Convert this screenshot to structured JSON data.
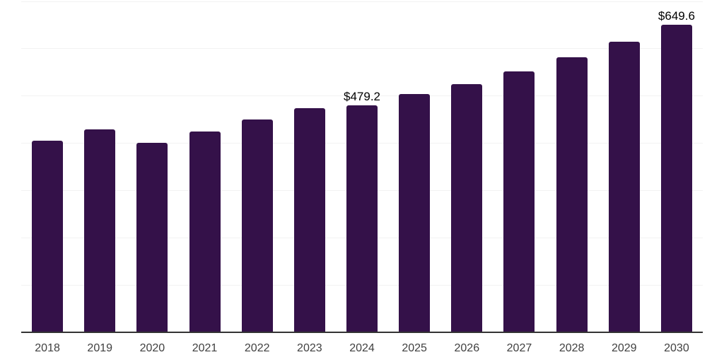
{
  "chart": {
    "background_color": "#ffffff",
    "bar_color": "#341149",
    "axis_line_color": "#333333",
    "gridline_color": "#f2f2f2",
    "data_label_color": "#000000",
    "tick_label_color": "#404040"
  },
  "chart_data": {
    "type": "bar",
    "title": "",
    "xlabel": "",
    "ylabel": "",
    "categories": [
      "2018",
      "2019",
      "2020",
      "2021",
      "2022",
      "2023",
      "2024",
      "2025",
      "2026",
      "2027",
      "2028",
      "2029",
      "2030"
    ],
    "values": [
      405,
      429,
      401,
      425,
      450,
      473,
      479.2,
      503,
      524,
      551,
      581,
      614,
      649.6
    ],
    "data_labels": {
      "2024": "$479.2",
      "2030": "$649.6"
    },
    "ylim": [
      0,
      700
    ],
    "grid_step": 100,
    "grid": "horizontal-only",
    "legend": "none",
    "y_axis_labels_visible": false
  }
}
